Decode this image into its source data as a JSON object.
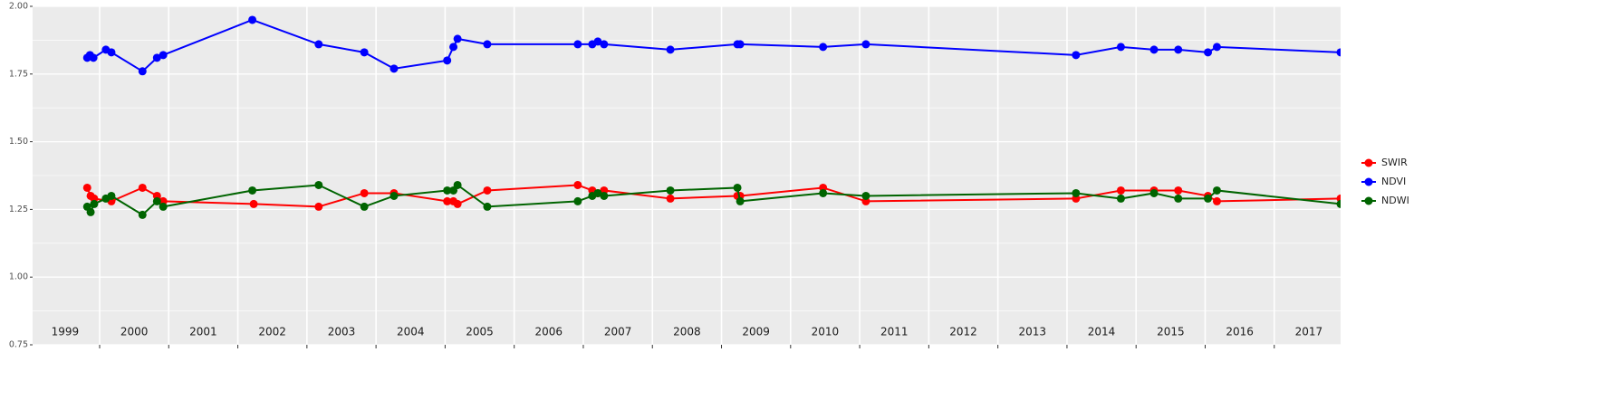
{
  "chart_data": {
    "type": "line",
    "xlim": [
      1999.03,
      2017.96
    ],
    "xticks": [
      {
        "value": 1999.5,
        "label": "1999"
      },
      {
        "value": 2000.5,
        "label": "2000"
      },
      {
        "value": 2001.5,
        "label": "2001"
      },
      {
        "value": 2002.5,
        "label": "2002"
      },
      {
        "value": 2003.5,
        "label": "2003"
      },
      {
        "value": 2004.5,
        "label": "2004"
      },
      {
        "value": 2005.5,
        "label": "2005"
      },
      {
        "value": 2006.5,
        "label": "2006"
      },
      {
        "value": 2007.5,
        "label": "2007"
      },
      {
        "value": 2008.5,
        "label": "2008"
      },
      {
        "value": 2009.5,
        "label": "2009"
      },
      {
        "value": 2010.5,
        "label": "2010"
      },
      {
        "value": 2011.5,
        "label": "2011"
      },
      {
        "value": 2012.5,
        "label": "2012"
      },
      {
        "value": 2013.5,
        "label": "2013"
      },
      {
        "value": 2014.5,
        "label": "2014"
      },
      {
        "value": 2015.5,
        "label": "2015"
      },
      {
        "value": 2016.5,
        "label": "2016"
      },
      {
        "value": 2017.5,
        "label": "2017"
      }
    ],
    "xgrid": [
      2000,
      2001,
      2002,
      2003,
      2004,
      2005,
      2006,
      2007,
      2008,
      2009,
      2010,
      2011,
      2012,
      2013,
      2014,
      2015,
      2016,
      2017
    ],
    "ylim": [
      0.75,
      2.0
    ],
    "yticks": [
      {
        "value": 0.75,
        "label": "0.75"
      },
      {
        "value": 1,
        "label": "1.00"
      },
      {
        "value": 1.25,
        "label": "1.25"
      },
      {
        "value": 1.5,
        "label": "1.50"
      },
      {
        "value": 1.75,
        "label": "1.75"
      },
      {
        "value": 2,
        "label": "2.00"
      }
    ],
    "yminor": [
      0.875,
      1.125,
      1.375,
      1.625,
      1.875
    ],
    "grid": true,
    "legend": "right",
    "series": [
      {
        "name": "SWIR",
        "color": "#ff0000",
        "x": [
          1999.82,
          1999.87,
          1999.92,
          2000.17,
          2000.62,
          2000.83,
          2000.92,
          2002.23,
          2003.17,
          2003.83,
          2004.26,
          2005.03,
          2005.12,
          2005.18,
          2005.61,
          2006.92,
          2007.13,
          2007.21,
          2007.3,
          2008.26,
          2009.23,
          2009.27,
          2010.47,
          2011.09,
          2014.13,
          2014.78,
          2015.26,
          2015.61,
          2016.04,
          2016.17,
          2017.96
        ],
        "values": [
          1.33,
          1.3,
          1.29,
          1.28,
          1.33,
          1.3,
          1.28,
          1.27,
          1.26,
          1.31,
          1.31,
          1.28,
          1.28,
          1.27,
          1.32,
          1.34,
          1.32,
          1.31,
          1.32,
          1.29,
          1.3,
          1.3,
          1.33,
          1.28,
          1.29,
          1.32,
          1.32,
          1.32,
          1.3,
          1.28,
          1.29
        ]
      },
      {
        "name": "NDVI",
        "color": "#0000ff",
        "x": [
          1999.82,
          1999.86,
          1999.91,
          2000.09,
          2000.17,
          2000.62,
          2000.83,
          2000.92,
          2002.21,
          2003.17,
          2003.83,
          2004.26,
          2005.03,
          2005.12,
          2005.18,
          2005.61,
          2006.92,
          2007.13,
          2007.21,
          2007.3,
          2008.26,
          2009.23,
          2009.27,
          2010.47,
          2011.09,
          2014.13,
          2014.78,
          2015.26,
          2015.61,
          2016.04,
          2016.17,
          2017.96
        ],
        "values": [
          1.81,
          1.82,
          1.81,
          1.84,
          1.83,
          1.76,
          1.81,
          1.82,
          1.95,
          1.86,
          1.83,
          1.77,
          1.8,
          1.85,
          1.88,
          1.86,
          1.86,
          1.86,
          1.87,
          1.86,
          1.84,
          1.86,
          1.86,
          1.85,
          1.86,
          1.82,
          1.85,
          1.84,
          1.84,
          1.83,
          1.85,
          1.83
        ]
      },
      {
        "name": "NDWI",
        "color": "#006400",
        "x": [
          1999.82,
          1999.87,
          1999.92,
          2000.09,
          2000.17,
          2000.62,
          2000.83,
          2000.92,
          2002.21,
          2003.17,
          2003.83,
          2004.26,
          2005.03,
          2005.12,
          2005.18,
          2005.61,
          2006.92,
          2007.13,
          2007.21,
          2007.3,
          2008.26,
          2009.23,
          2009.27,
          2010.47,
          2011.09,
          2014.13,
          2014.78,
          2015.26,
          2015.61,
          2016.04,
          2016.17,
          2017.96
        ],
        "values": [
          1.26,
          1.24,
          1.27,
          1.29,
          1.3,
          1.23,
          1.28,
          1.26,
          1.32,
          1.34,
          1.26,
          1.3,
          1.32,
          1.32,
          1.34,
          1.26,
          1.28,
          1.3,
          1.31,
          1.3,
          1.32,
          1.33,
          1.28,
          1.31,
          1.3,
          1.31,
          1.29,
          1.31,
          1.29,
          1.29,
          1.32,
          1.27
        ]
      }
    ]
  }
}
